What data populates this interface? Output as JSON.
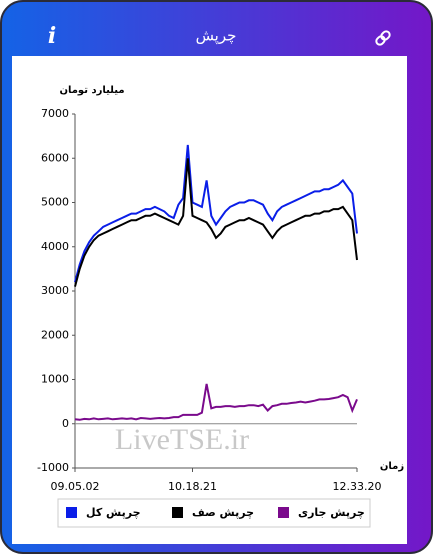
{
  "header": {
    "title": "چرپش",
    "info_icon": "i"
  },
  "watermark": "LiveTSE.ir",
  "chart_data": {
    "type": "line",
    "y_label": "میلیارد تومان",
    "x_label": "زمان",
    "categories": [
      "09.05.02",
      null,
      null,
      null,
      null,
      null,
      null,
      null,
      null,
      null,
      null,
      null,
      null,
      null,
      null,
      null,
      null,
      null,
      null,
      null,
      null,
      null,
      null,
      null,
      null,
      "10.18.21",
      null,
      null,
      null,
      null,
      null,
      null,
      null,
      null,
      null,
      null,
      null,
      null,
      null,
      null,
      null,
      null,
      null,
      null,
      null,
      null,
      null,
      null,
      null,
      null,
      null,
      null,
      null,
      null,
      null,
      null,
      null,
      null,
      null,
      null,
      "12.33.20"
    ],
    "series": [
      {
        "name": "چرپش کل",
        "color": "#0a1ee8",
        "values": [
          3200,
          3600,
          3900,
          4100,
          4250,
          4350,
          4450,
          4500,
          4550,
          4600,
          4650,
          4700,
          4750,
          4750,
          4800,
          4850,
          4850,
          4900,
          4850,
          4800,
          4700,
          4650,
          4950,
          5100,
          6300,
          5000,
          4950,
          4900,
          5500,
          4700,
          4500,
          4650,
          4800,
          4900,
          4950,
          5000,
          5000,
          5050,
          5050,
          5000,
          4950,
          4750,
          4600,
          4800,
          4900,
          4950,
          5000,
          5050,
          5100,
          5150,
          5200,
          5250,
          5250,
          5300,
          5300,
          5350,
          5400,
          5500,
          5350,
          5200,
          4300
        ]
      },
      {
        "name": "چرپش صف",
        "color": "#000000",
        "values": [
          3100,
          3500,
          3800,
          4000,
          4150,
          4250,
          4300,
          4350,
          4400,
          4450,
          4500,
          4550,
          4600,
          4600,
          4650,
          4700,
          4700,
          4750,
          4700,
          4650,
          4600,
          4550,
          4500,
          4700,
          6000,
          4700,
          4650,
          4600,
          4550,
          4400,
          4200,
          4300,
          4450,
          4500,
          4550,
          4600,
          4600,
          4650,
          4600,
          4550,
          4500,
          4350,
          4200,
          4350,
          4450,
          4500,
          4550,
          4600,
          4650,
          4700,
          4700,
          4750,
          4750,
          4800,
          4800,
          4850,
          4850,
          4900,
          4750,
          4600,
          3700
        ]
      },
      {
        "name": "چرپش جاری",
        "color": "#7a0a8c",
        "values": [
          100,
          90,
          110,
          100,
          120,
          100,
          110,
          120,
          100,
          110,
          120,
          110,
          120,
          100,
          130,
          120,
          110,
          120,
          130,
          120,
          130,
          150,
          150,
          200,
          200,
          200,
          200,
          250,
          900,
          350,
          380,
          380,
          400,
          400,
          380,
          400,
          400,
          420,
          420,
          400,
          430,
          300,
          400,
          420,
          450,
          450,
          470,
          480,
          500,
          480,
          500,
          520,
          550,
          550,
          560,
          580,
          600,
          650,
          600,
          300,
          550
        ]
      }
    ],
    "ylim": [
      -1000,
      7000
    ],
    "yticks": [
      -1000,
      0,
      1000,
      2000,
      3000,
      4000,
      5000,
      6000,
      7000
    ],
    "grid": false
  }
}
